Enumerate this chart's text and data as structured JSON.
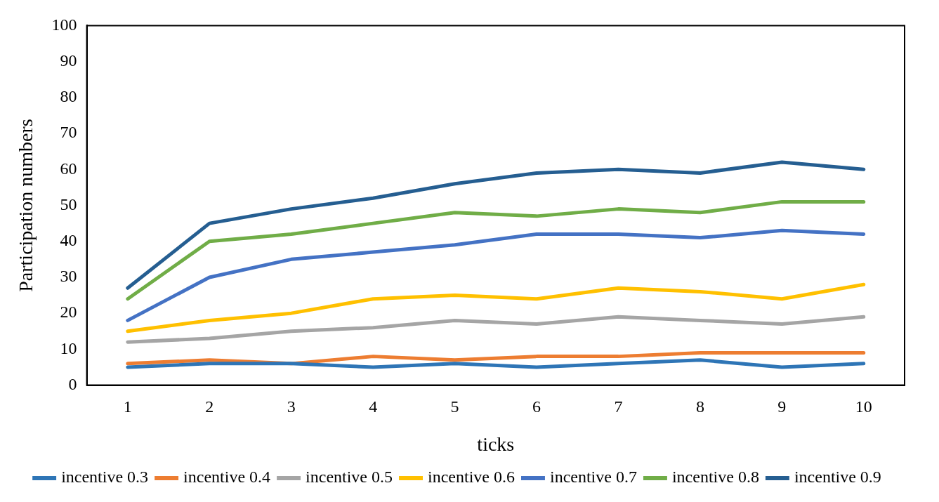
{
  "chart_data": {
    "type": "line",
    "xlabel": "ticks",
    "ylabel": "Participation numbers",
    "categories": [
      "1",
      "2",
      "3",
      "4",
      "5",
      "6",
      "7",
      "8",
      "9",
      "10"
    ],
    "ylim": [
      0,
      100
    ],
    "yticks": [
      0,
      10,
      20,
      30,
      40,
      50,
      60,
      70,
      80,
      90,
      100
    ],
    "legend": "bottom",
    "marker": "none",
    "line_style": "solid",
    "grid": false,
    "series": [
      {
        "name": "incentive 0.3",
        "color": "#2e75b6",
        "values": [
          5,
          6,
          6,
          5,
          6,
          5,
          6,
          7,
          5,
          6
        ]
      },
      {
        "name": "incentive 0.4",
        "color": "#ed7d31",
        "values": [
          6,
          7,
          6,
          8,
          7,
          8,
          8,
          9,
          9,
          9
        ]
      },
      {
        "name": "incentive 0.5",
        "color": "#a5a5a5",
        "values": [
          12,
          13,
          15,
          16,
          18,
          17,
          19,
          18,
          17,
          19
        ]
      },
      {
        "name": "incentive 0.6",
        "color": "#ffc000",
        "values": [
          15,
          18,
          20,
          24,
          25,
          24,
          27,
          26,
          24,
          28
        ]
      },
      {
        "name": "incentive 0.7",
        "color": "#4472c4",
        "values": [
          18,
          30,
          35,
          37,
          39,
          42,
          42,
          41,
          43,
          42
        ]
      },
      {
        "name": "incentive 0.8",
        "color": "#70ad47",
        "values": [
          24,
          40,
          42,
          45,
          48,
          47,
          49,
          48,
          51,
          51
        ]
      },
      {
        "name": "incentive 0.9",
        "color": "#255e91",
        "values": [
          27,
          45,
          49,
          52,
          56,
          59,
          60,
          59,
          62,
          60
        ]
      }
    ]
  }
}
